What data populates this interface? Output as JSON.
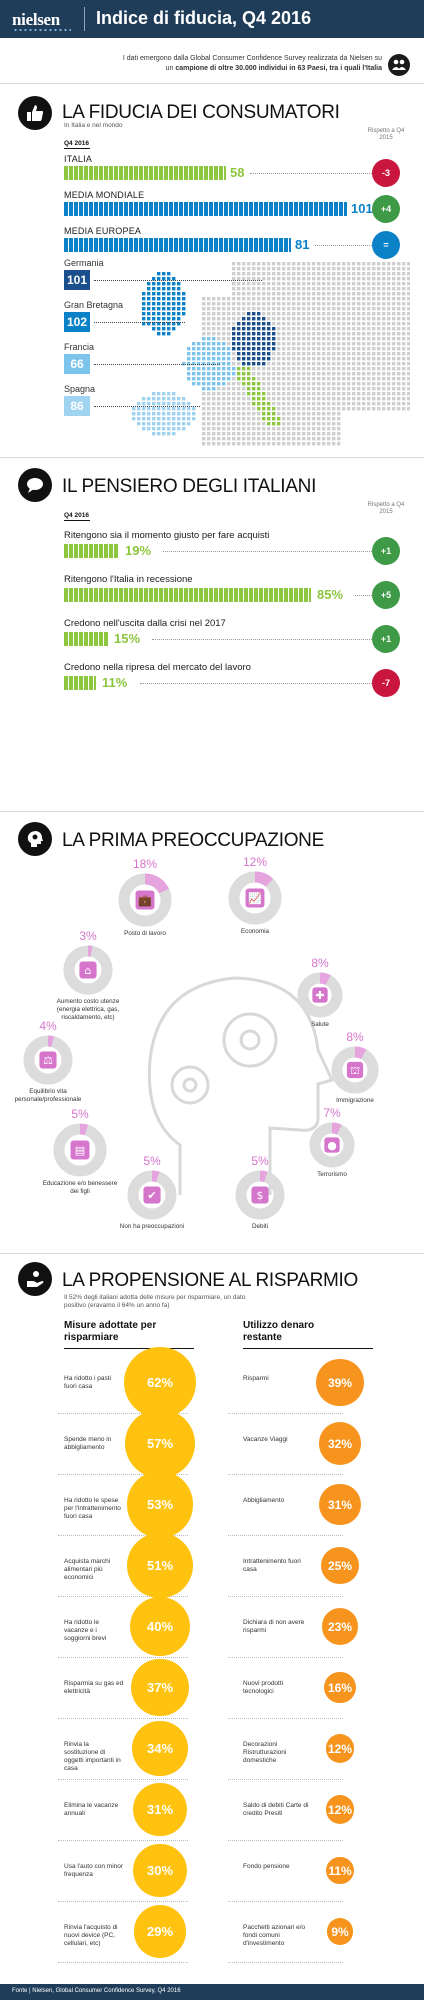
{
  "header": {
    "logo": "nielsen",
    "title": "Indice di fiducia, Q4 2016",
    "intro_pre": "I dati emergono dalla Global Consumer Confidence Survey realizzata da Nielsen su un",
    "intro_bold": "campione di oltre 30.000 individui in 63 Paesi, tra i quali l'Italia"
  },
  "fiducia": {
    "title": "LA FIDUCIA DEI CONSUMATORI",
    "subtitle": "In Italia e nel mondo",
    "quarter": "Q4 2016",
    "rispetto": "Rispetto a Q4 2015",
    "rows": [
      {
        "label": "ITALIA",
        "value": "58",
        "delta": "-3",
        "color": "green",
        "sign": "neg"
      },
      {
        "label": "MEDIA MONDIALE",
        "value": "101",
        "delta": "+4",
        "color": "blue",
        "sign": "pos"
      },
      {
        "label": "MEDIA EUROPEA",
        "value": "81",
        "delta": "=",
        "color": "blue",
        "sign": "eq"
      }
    ],
    "countries": [
      {
        "name": "Germania",
        "value": "101",
        "color": "#1a4f8b"
      },
      {
        "name": "Gran Bretagna",
        "value": "102",
        "color": "#0b82c8"
      },
      {
        "name": "Francia",
        "value": "66",
        "color": "#7cc4ec"
      },
      {
        "name": "Spagna",
        "value": "86",
        "color": "#9fd3f0"
      }
    ]
  },
  "pensiero": {
    "title": "IL PENSIERO DEGLI ITALIANI",
    "quarter": "Q4 2016",
    "rispetto": "Rispetto a Q4 2015",
    "rows": [
      {
        "label": "Ritengono sia il momento giusto per fare acquisti",
        "value": "19%",
        "pct": 19,
        "delta": "+1",
        "sign": "pos"
      },
      {
        "label": "Ritengono l'Italia in recessione",
        "value": "85%",
        "pct": 85,
        "delta": "+5",
        "sign": "pos"
      },
      {
        "label": "Credono nell'uscita dalla crisi nel 2017",
        "value": "15%",
        "pct": 15,
        "delta": "+1",
        "sign": "pos"
      },
      {
        "label": "Credono nella ripresa del mercato del lavoro",
        "value": "11%",
        "pct": 11,
        "delta": "-7",
        "sign": "neg"
      }
    ]
  },
  "preoccupazione": {
    "title": "LA PRIMA PREOCCUPAZIONE",
    "items": [
      {
        "label": "Posto di lavoro",
        "pct": "18%",
        "value": 18,
        "icon": "briefcase-icon"
      },
      {
        "label": "Economia",
        "pct": "12%",
        "value": 12,
        "icon": "chart-icon"
      },
      {
        "label": "Aumento costo utenze (energia elettrica, gas, riscaldamento, etc)",
        "pct": "3%",
        "value": 3,
        "icon": "home-icon"
      },
      {
        "label": "Salute",
        "pct": "8%",
        "value": 8,
        "icon": "health-icon"
      },
      {
        "label": "Equilibrio vita personale/professionale",
        "pct": "4%",
        "value": 4,
        "icon": "scale-icon"
      },
      {
        "label": "Immigrazione",
        "pct": "8%",
        "value": 8,
        "icon": "immigration-icon"
      },
      {
        "label": "Educazione e/o benessere dei figli",
        "pct": "5%",
        "value": 5,
        "icon": "book-icon"
      },
      {
        "label": "Terrorismo",
        "pct": "7%",
        "value": 7,
        "icon": "bomb-icon"
      },
      {
        "label": "Non ha preoccupazioni",
        "pct": "5%",
        "value": 5,
        "icon": "check-icon"
      },
      {
        "label": "Debiti",
        "pct": "5%",
        "value": 5,
        "icon": "money-icon"
      }
    ]
  },
  "risparmio": {
    "title": "LA PROPENSIONE AL RISPARMIO",
    "subtitle": "Il 52% degli italiani adotta delle misure per risparmiare, un dato positivo (eravamo il 64% un anno fa)",
    "left_head": "Misure adottate per risparmiare",
    "right_head": "Utilizzo denaro restante",
    "left": [
      {
        "label": "Ha ridotto i pasti fuori casa",
        "value": "62%"
      },
      {
        "label": "Spende meno in abbigliamento",
        "value": "57%"
      },
      {
        "label": "Ha ridotto le spese per l'intrattenimento fuori casa",
        "value": "53%"
      },
      {
        "label": "Acquista marchi alimentari più economici",
        "value": "51%"
      },
      {
        "label": "Ha ridotto le vacanze e i soggiorni brevi",
        "value": "40%"
      },
      {
        "label": "Risparmia su gas ed elettricità",
        "value": "37%"
      },
      {
        "label": "Rinvia la sostituzione di oggetti importanti in casa",
        "value": "34%"
      },
      {
        "label": "Elimina le vacanze annuali",
        "value": "31%"
      },
      {
        "label": "Usa l'auto con minor frequenza",
        "value": "30%"
      },
      {
        "label": "Rinvia l'acquisto di nuovi device (PC, cellulari, etc)",
        "value": "29%"
      }
    ],
    "right": [
      {
        "label": "Risparmi",
        "value": "39%"
      },
      {
        "label": "Vacanze Viaggi",
        "value": "32%"
      },
      {
        "label": "Abbigliamento",
        "value": "31%"
      },
      {
        "label": "Intrattenimento fuori casa",
        "value": "25%"
      },
      {
        "label": "Dichiara di non avere risparmi",
        "value": "23%"
      },
      {
        "label": "Nuovi prodotti tecnologici",
        "value": "16%"
      },
      {
        "label": "Decorazioni Ristrutturazioni domestiche",
        "value": "12%"
      },
      {
        "label": "Saldo di debiti Carte di credito Presiti",
        "value": "12%"
      },
      {
        "label": "Fondo pensione",
        "value": "11%"
      },
      {
        "label": "Pacchetti azionari e/o fondi comuni d'investimento",
        "value": "9%"
      }
    ]
  },
  "footer": {
    "text": "Fonte  |  Nielsen, Global Consumer Confidence Survey, Q4 2016"
  }
}
